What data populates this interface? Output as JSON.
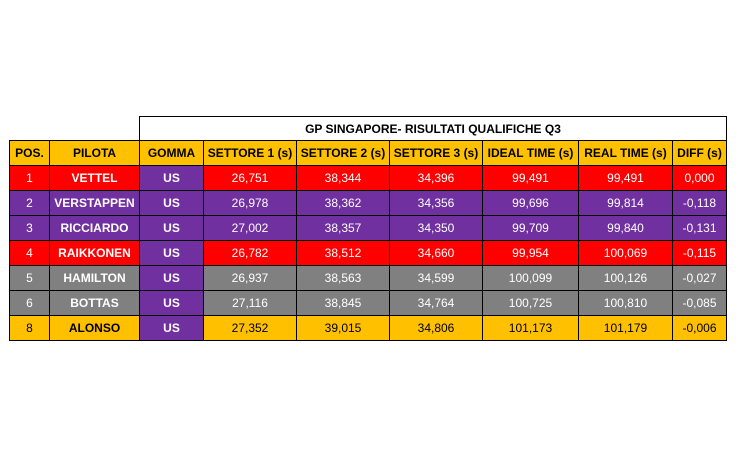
{
  "table": {
    "title": "GP SINGAPORE- RISULTATI QUALIFICHE Q3",
    "headers": [
      "POS.",
      "PILOTA",
      "GOMMA",
      "SETTORE 1 (s)",
      "SETTORE 2 (s)",
      "SETTORE 3 (s)",
      "IDEAL TIME (s)",
      "REAL TIME (s)",
      "DIFF (s)"
    ],
    "rows": [
      [
        "1",
        "VETTEL",
        "US",
        "26,751",
        "38,344",
        "34,396",
        "99,491",
        "99,491",
        "0,000"
      ],
      [
        "2",
        "VERSTAPPEN",
        "US",
        "26,978",
        "38,362",
        "34,356",
        "99,696",
        "99,814",
        "-0,118"
      ],
      [
        "3",
        "RICCIARDO",
        "US",
        "27,002",
        "38,357",
        "34,350",
        "99,709",
        "99,840",
        "-0,131"
      ],
      [
        "4",
        "RAIKKONEN",
        "US",
        "26,782",
        "38,512",
        "34,660",
        "99,954",
        "100,069",
        "-0,115"
      ],
      [
        "5",
        "HAMILTON",
        "US",
        "26,937",
        "38,563",
        "34,599",
        "100,099",
        "100,126",
        "-0,027"
      ],
      [
        "6",
        "BOTTAS",
        "US",
        "27,116",
        "38,845",
        "34,764",
        "100,725",
        "100,810",
        "-0,085"
      ],
      [
        "8",
        "ALONSO",
        "US",
        "27,352",
        "39,015",
        "34,806",
        "101,173",
        "101,179",
        "-0,006"
      ]
    ],
    "row_colors": [
      "#FF0000",
      "#7030A0",
      "#7030A0",
      "#FF0000",
      "#808080",
      "#808080",
      "#FFC000"
    ],
    "header_color": "#FFC000",
    "tyre_color": "#7030A0"
  }
}
